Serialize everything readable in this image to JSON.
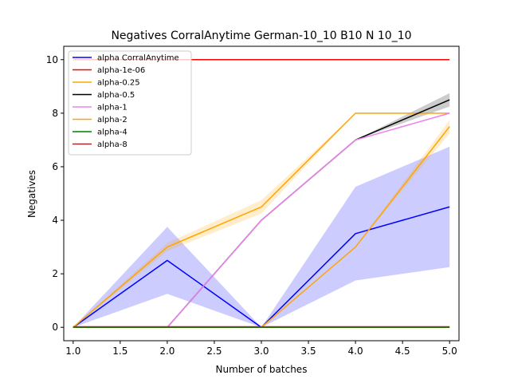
{
  "chart_data": {
    "type": "line",
    "title": "Negatives CorralAnytime German-10_10 B10 N 10_10",
    "xlabel": "Number of batches",
    "ylabel": "Negatives",
    "xlim": [
      0.9,
      5.1
    ],
    "ylim": [
      -0.5,
      10.5
    ],
    "xticks": [
      "1.0",
      "1.5",
      "2.0",
      "2.5",
      "3.0",
      "3.5",
      "4.0",
      "4.5",
      "5.0"
    ],
    "yticks": [
      "0",
      "2",
      "4",
      "6",
      "8",
      "10"
    ],
    "grid": false,
    "legend_position": "upper-left",
    "x": [
      1,
      2,
      3,
      4,
      5
    ],
    "series": [
      {
        "name": "alpha CorralAnytime",
        "color": "#0000ff",
        "values": [
          0,
          2.5,
          0,
          3.5,
          4.5
        ],
        "band_low": [
          0,
          1.25,
          0,
          1.75,
          2.25
        ],
        "band_high": [
          0,
          3.75,
          0,
          5.25,
          6.75
        ]
      },
      {
        "name": "alpha-1e-06",
        "color": "#ff0000",
        "values": [
          10,
          10,
          10,
          10,
          10
        ]
      },
      {
        "name": "alpha-0.25",
        "color": "#ffa500",
        "values": [
          0,
          3,
          4.5,
          8,
          8
        ],
        "band_low": [
          0,
          2.85,
          4.25,
          8,
          8
        ],
        "band_high": [
          0,
          3.15,
          4.75,
          8,
          8
        ]
      },
      {
        "name": "alpha-0.5",
        "color": "#000000",
        "values": [
          0,
          0,
          4,
          7,
          8.5
        ],
        "band_low": [
          0,
          0,
          4,
          7,
          8.25
        ],
        "band_high": [
          0,
          0,
          4,
          7,
          8.75
        ]
      },
      {
        "name": "alpha-1",
        "color": "#ee82ee",
        "values": [
          0,
          0,
          4,
          7,
          8
        ]
      },
      {
        "name": "alpha-2",
        "color": "#ffa500",
        "values": [
          0,
          0,
          0,
          3,
          7.5
        ],
        "band_low": [
          0,
          0,
          0,
          3,
          7.25
        ],
        "band_high": [
          0,
          0,
          0,
          3,
          7.75
        ]
      },
      {
        "name": "alpha-4",
        "color": "#008000",
        "values": [
          0,
          0,
          0,
          0,
          0
        ]
      },
      {
        "name": "alpha-8",
        "color": "#a52a2a",
        "values": [
          0.02,
          0.02,
          0.02,
          0.02,
          0.02
        ]
      }
    ]
  }
}
